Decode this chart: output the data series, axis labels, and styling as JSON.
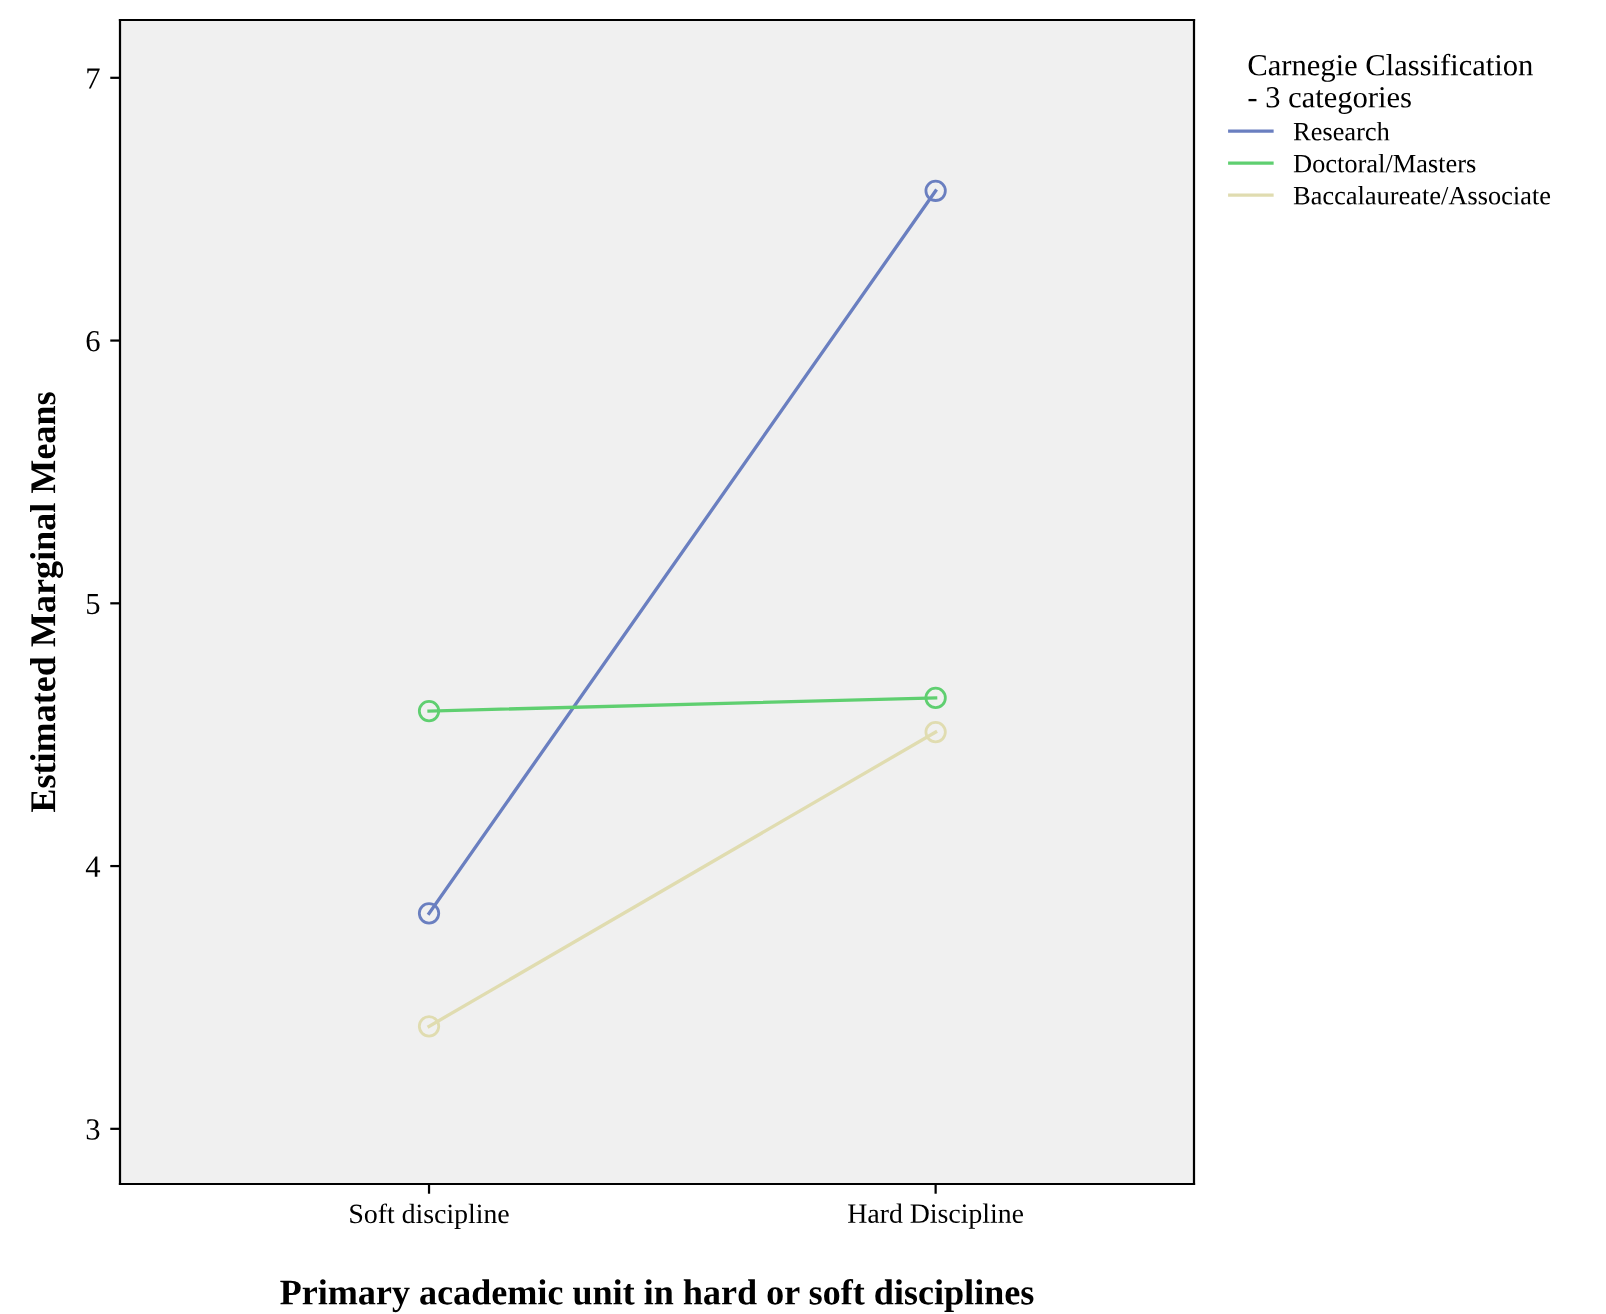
{
  "chart_data": {
    "type": "line",
    "xlabel": "Primary academic unit in hard or soft disciplines",
    "ylabel": "Estimated Marginal Means",
    "legend_title": "Carnegie Classification\n- 3 categories",
    "categories": [
      "Soft discipline",
      "Hard Discipline"
    ],
    "series": [
      {
        "name": "Research",
        "color": "#6a7fc0",
        "values": [
          3.82,
          6.57
        ]
      },
      {
        "name": "Doctoral/Masters",
        "color": "#5fcf70",
        "values": [
          4.59,
          4.64
        ]
      },
      {
        "name": "Baccalaureate/Associate",
        "color": "#e0dcb0",
        "values": [
          3.39,
          4.51
        ]
      }
    ],
    "ylim": [
      2.79,
      7.22
    ],
    "yticks": [
      3,
      4,
      5,
      6,
      7
    ],
    "grid": false,
    "legend": "top right",
    "marker": "circle",
    "line_style": "solid"
  }
}
